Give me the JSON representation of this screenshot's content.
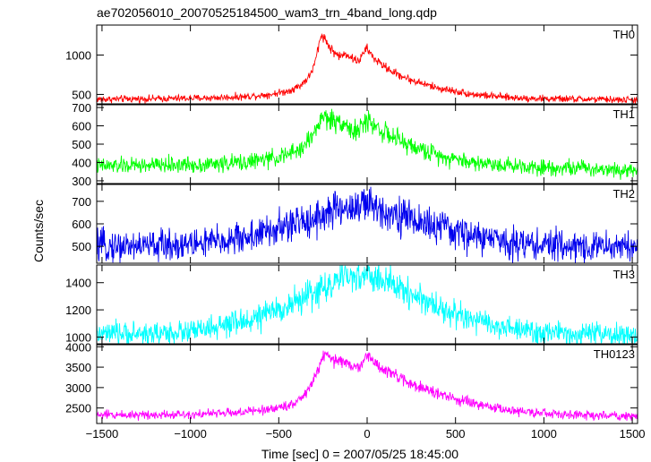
{
  "chart_data": {
    "type": "line",
    "title": "ae702056010_20070525184500_wam3_trn_4band_long.qdp",
    "xlabel": "Time [sec] 0 = 2007/05/25 18:45:00",
    "ylabel": "Counts/sec",
    "xlim": [
      -1530,
      1530
    ],
    "x_ticks": [
      -1500,
      -1000,
      -500,
      0,
      500,
      1000,
      1500
    ],
    "x_tick_labels": [
      "−1500",
      "−1000",
      "−500",
      "0",
      "500",
      "1000",
      "1500"
    ],
    "grid": false,
    "series": [
      {
        "name": "TH0",
        "color": "#ff0000",
        "ylim": [
          380,
          1380
        ],
        "y_ticks": [
          500,
          1000
        ],
        "y_tick_labels": [
          "500",
          "1000"
        ],
        "noise": 22,
        "x": [
          -1500,
          -1200,
          -900,
          -700,
          -550,
          -450,
          -380,
          -330,
          -300,
          -280,
          -265,
          -255,
          -240,
          -210,
          -180,
          -150,
          -120,
          -100,
          -80,
          -60,
          -40,
          -20,
          -5,
          5,
          30,
          80,
          150,
          250,
          400,
          600,
          800,
          1000,
          1200,
          1500
        ],
        "values": [
          440,
          445,
          455,
          470,
          500,
          540,
          610,
          720,
          860,
          1060,
          1200,
          1270,
          1210,
          1090,
          1020,
          980,
          1020,
          990,
          950,
          930,
          940,
          1030,
          1080,
          1070,
          980,
          880,
          780,
          680,
          580,
          500,
          460,
          445,
          440,
          430
        ]
      },
      {
        "name": "TH1",
        "color": "#00ff00",
        "ylim": [
          285,
          715
        ],
        "y_ticks": [
          300,
          400,
          500,
          600,
          700
        ],
        "y_tick_labels": [
          "300",
          "400",
          "500",
          "600",
          "700"
        ],
        "noise": 22,
        "x": [
          -1500,
          -1200,
          -900,
          -700,
          -550,
          -450,
          -380,
          -330,
          -290,
          -265,
          -250,
          -220,
          -180,
          -150,
          -120,
          -100,
          -70,
          -40,
          -15,
          0,
          20,
          60,
          120,
          200,
          300,
          450,
          600,
          800,
          1000,
          1200,
          1500
        ],
        "values": [
          380,
          385,
          390,
          400,
          420,
          440,
          470,
          520,
          580,
          630,
          650,
          640,
          620,
          630,
          610,
          580,
          570,
          580,
          610,
          630,
          620,
          590,
          550,
          510,
          470,
          430,
          400,
          385,
          375,
          370,
          360
        ]
      },
      {
        "name": "TH2",
        "color": "#0000ee",
        "ylim": [
          425,
          775
        ],
        "y_ticks": [
          500,
          600,
          700
        ],
        "y_tick_labels": [
          "500",
          "600",
          "700"
        ],
        "noise": 34,
        "x": [
          -1500,
          -1200,
          -1000,
          -800,
          -600,
          -400,
          -250,
          -150,
          -50,
          0,
          50,
          150,
          250,
          400,
          600,
          800,
          1000,
          1200,
          1500
        ],
        "values": [
          500,
          505,
          510,
          525,
          555,
          600,
          640,
          665,
          680,
          680,
          670,
          650,
          620,
          585,
          545,
          520,
          505,
          500,
          500
        ]
      },
      {
        "name": "TH3",
        "color": "#00ffff",
        "ylim": [
          950,
          1530
        ],
        "y_ticks": [
          1000,
          1200,
          1400
        ],
        "y_tick_labels": [
          "1000",
          "1200",
          "1400"
        ],
        "noise": 42,
        "x": [
          -1500,
          -1200,
          -1000,
          -800,
          -600,
          -400,
          -250,
          -150,
          -50,
          0,
          50,
          150,
          250,
          400,
          600,
          800,
          1000,
          1200,
          1500
        ],
        "values": [
          1020,
          1025,
          1040,
          1080,
          1150,
          1260,
          1360,
          1420,
          1450,
          1450,
          1430,
          1380,
          1320,
          1220,
          1120,
          1060,
          1030,
          1020,
          1010
        ]
      },
      {
        "name": "TH0123",
        "color": "#ff00ff",
        "ylim": [
          2120,
          4050
        ],
        "y_ticks": [
          2500,
          3000,
          3500,
          4000
        ],
        "y_tick_labels": [
          "2500",
          "3000",
          "3500",
          "4000"
        ],
        "noise": 55,
        "x": [
          -1500,
          -1200,
          -900,
          -700,
          -550,
          -450,
          -380,
          -330,
          -290,
          -265,
          -250,
          -220,
          -180,
          -150,
          -120,
          -100,
          -70,
          -40,
          -15,
          0,
          20,
          60,
          120,
          200,
          300,
          450,
          600,
          800,
          1000,
          1200,
          1500
        ],
        "values": [
          2330,
          2340,
          2360,
          2400,
          2470,
          2560,
          2700,
          2950,
          3300,
          3600,
          3780,
          3740,
          3640,
          3700,
          3600,
          3520,
          3480,
          3560,
          3700,
          3780,
          3700,
          3550,
          3380,
          3200,
          3000,
          2780,
          2600,
          2450,
          2360,
          2330,
          2300
        ]
      }
    ]
  }
}
